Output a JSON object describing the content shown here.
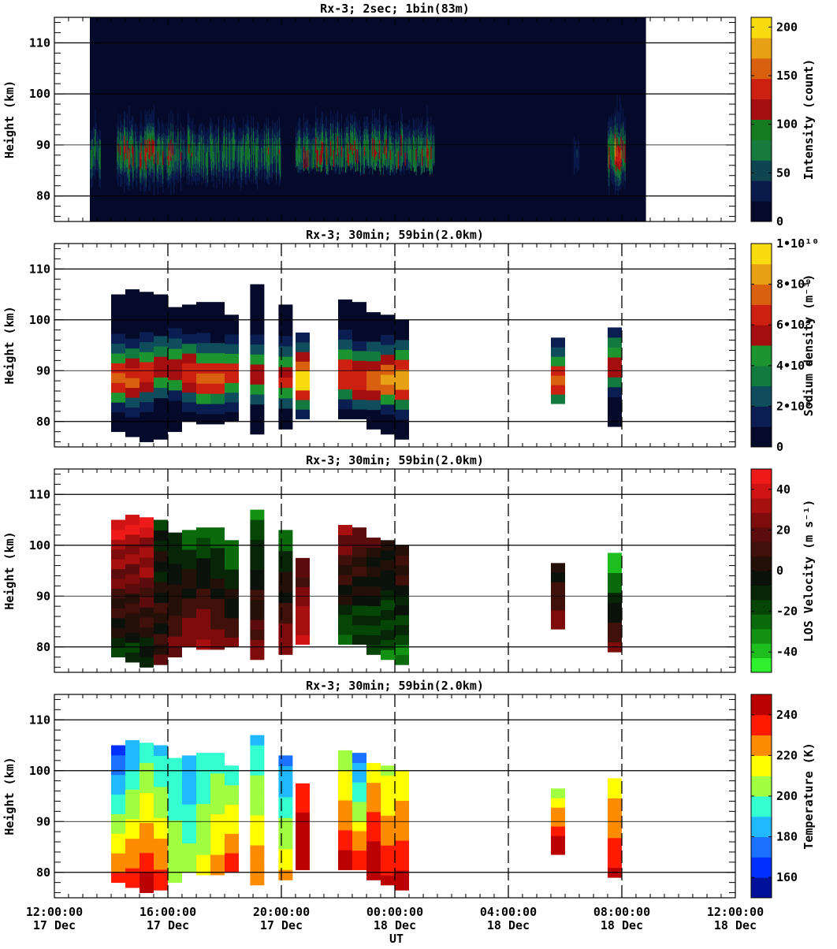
{
  "figure": {
    "xlabel": "UT",
    "x_tick_labels": [
      [
        "12:00:00",
        "17 Dec"
      ],
      [
        "16:00:00",
        "17 Dec"
      ],
      [
        "20:00:00",
        "17 Dec"
      ],
      [
        "00:00:00",
        "18 Dec"
      ],
      [
        "04:00:00",
        "18 Dec"
      ],
      [
        "08:00:00",
        "18 Dec"
      ],
      [
        "12:00:00",
        "18 Dec"
      ]
    ],
    "y_tick_labels": [
      "80",
      "90",
      "100",
      "110"
    ],
    "ylabel": "Height (km)"
  },
  "chart_data": [
    {
      "type": "heatmap",
      "title": "Rx-3;  2sec; 1bin(83m)",
      "xlabel": "UT",
      "ylabel": "Height (km)",
      "x_range_hours_from_12UT_17Dec": [
        0,
        24
      ],
      "ylim": [
        75,
        115
      ],
      "colorbar": {
        "label": "Intensity (count)",
        "range": [
          0,
          210
        ],
        "tick_values": [
          0,
          50,
          100,
          150,
          200
        ],
        "tick_labels": [
          "0",
          "50",
          "100",
          "150",
          "200"
        ]
      },
      "dashed_verticals": false,
      "data_extent_hours": [
        1.25,
        20.85
      ],
      "layer_events": [
        {
          "t": [
            1.25,
            1.6
          ],
          "z": [
            75,
            115
          ],
          "peak_value": 100
        },
        {
          "t": [
            2.2,
            4.2
          ],
          "z": [
            80,
            99
          ],
          "peak_value": 140
        },
        {
          "t": [
            4.2,
            8.0
          ],
          "z": [
            81,
            99
          ],
          "peak_value": 110
        },
        {
          "t": [
            8.5,
            13.4
          ],
          "z": [
            84,
            99
          ],
          "peak_value": 130
        },
        {
          "t": [
            18.3,
            18.5
          ],
          "z": [
            82,
            92
          ],
          "peak_value": 60
        },
        {
          "t": [
            19.5,
            20.1
          ],
          "z": [
            80,
            100
          ],
          "peak_value": 180
        }
      ]
    },
    {
      "type": "heatmap",
      "title": "Rx-3; 30min; 59bin(2.0km)",
      "xlabel": "UT",
      "ylabel": "Height (km)",
      "ylim": [
        75,
        115
      ],
      "colorbar": {
        "label": "Sodium density (m⁻³)",
        "range": [
          0,
          10000000000.0
        ],
        "tick_values": [
          0,
          2000000000.0,
          4000000000.0,
          6000000000.0,
          8000000000.0,
          10000000000.0
        ],
        "tick_labels": [
          "0",
          "2•10⁹",
          "4•10⁹",
          "6•10⁹",
          "8•10⁹",
          "1•10¹⁰"
        ]
      },
      "dashed_verticals": true,
      "columns": [
        {
          "t": [
            2.0,
            2.5
          ],
          "zmin": 78,
          "zmax": 105,
          "peak_z": 88,
          "peak": 7500000000.0
        },
        {
          "t": [
            2.5,
            3.0
          ],
          "zmin": 77,
          "zmax": 106,
          "peak_z": 88,
          "peak": 7200000000.0
        },
        {
          "t": [
            3.0,
            3.5
          ],
          "zmin": 76,
          "zmax": 105.5,
          "peak_z": 89,
          "peak": 6800000000.0
        },
        {
          "t": [
            3.5,
            4.0
          ],
          "zmin": 76.5,
          "zmax": 105,
          "peak_z": 90,
          "peak": 5500000000.0
        },
        {
          "t": [
            4.0,
            4.5
          ],
          "zmin": 78,
          "zmax": 102.5,
          "peak_z": 90,
          "peak": 6000000000.0
        },
        {
          "t": [
            4.5,
            5.0
          ],
          "zmin": 80,
          "zmax": 103,
          "peak_z": 89,
          "peak": 7000000000.0
        },
        {
          "t": [
            5.0,
            5.5
          ],
          "zmin": 79.5,
          "zmax": 103.5,
          "peak_z": 88,
          "peak": 7500000000.0
        },
        {
          "t": [
            5.5,
            6.0
          ],
          "zmin": 79.5,
          "zmax": 103.5,
          "peak_z": 88,
          "peak": 7200000000.0
        },
        {
          "t": [
            6.0,
            6.5
          ],
          "zmin": 80,
          "zmax": 101,
          "peak_z": 89,
          "peak": 6500000000.0
        },
        {
          "t": [
            6.9,
            7.4
          ],
          "zmin": 77.5,
          "zmax": 107,
          "peak_z": 89,
          "peak": 6000000000.0
        },
        {
          "t": [
            7.9,
            8.4
          ],
          "zmin": 78.5,
          "zmax": 103,
          "peak_z": 88,
          "peak": 6500000000.0
        },
        {
          "t": [
            8.5,
            9.0
          ],
          "zmin": 80.5,
          "zmax": 97.5,
          "peak_z": 88,
          "peak": 9500000000.0
        },
        {
          "t": [
            10.0,
            10.5
          ],
          "zmin": 80.5,
          "zmax": 104,
          "peak_z": 89,
          "peak": 7000000000.0
        },
        {
          "t": [
            10.5,
            11.0
          ],
          "zmin": 80.5,
          "zmax": 103.5,
          "peak_z": 88,
          "peak": 7200000000.0
        },
        {
          "t": [
            11.0,
            11.5
          ],
          "zmin": 78.5,
          "zmax": 101.5,
          "peak_z": 88,
          "peak": 7500000000.0
        },
        {
          "t": [
            11.5,
            12.0
          ],
          "zmin": 77.5,
          "zmax": 101,
          "peak_z": 88,
          "peak": 8500000000.0
        },
        {
          "t": [
            12.0,
            12.5
          ],
          "zmin": 76.5,
          "zmax": 100,
          "peak_z": 88,
          "peak": 9000000000.0
        },
        {
          "t": [
            17.5,
            18.0
          ],
          "zmin": 83.5,
          "zmax": 96.5,
          "peak_z": 88,
          "peak": 7200000000.0
        },
        {
          "t": [
            19.5,
            20.0
          ],
          "zmin": 79,
          "zmax": 98.5,
          "peak_z": 91,
          "peak": 5500000000.0
        }
      ]
    },
    {
      "type": "heatmap",
      "title": "Rx-3; 30min; 59bin(2.0km)",
      "xlabel": "UT",
      "ylabel": "Height (km)",
      "ylim": [
        75,
        115
      ],
      "colorbar": {
        "label": "LOS Velocity (m s⁻¹)",
        "range": [
          -50,
          50
        ],
        "tick_values": [
          -40,
          -20,
          0,
          20,
          40
        ],
        "tick_labels": [
          "-40",
          "-20",
          "0",
          "20",
          "40"
        ]
      },
      "dashed_verticals": true,
      "columns": [
        {
          "t": [
            2.0,
            2.5
          ],
          "v_top": 45,
          "v_bottom": -15
        },
        {
          "t": [
            2.5,
            3.0
          ],
          "v_top": 45,
          "v_bottom": -15
        },
        {
          "t": [
            3.0,
            3.5
          ],
          "v_top": 42,
          "v_bottom": -10
        },
        {
          "t": [
            3.5,
            4.0
          ],
          "v_top": -10,
          "v_bottom": 10
        },
        {
          "t": [
            4.0,
            4.5
          ],
          "v_top": -15,
          "v_bottom": 20
        },
        {
          "t": [
            4.5,
            5.0
          ],
          "v_top": -25,
          "v_bottom": 30
        },
        {
          "t": [
            5.0,
            5.5
          ],
          "v_top": -25,
          "v_bottom": 35
        },
        {
          "t": [
            5.5,
            6.0
          ],
          "v_top": -30,
          "v_bottom": 30
        },
        {
          "t": [
            6.0,
            6.5
          ],
          "v_top": -30,
          "v_bottom": 20
        },
        {
          "t": [
            6.9,
            7.4
          ],
          "v_top": -25,
          "v_bottom": 25
        },
        {
          "t": [
            7.9,
            8.4
          ],
          "v_top": -25,
          "v_bottom": 30
        },
        {
          "t": [
            8.5,
            9.0
          ],
          "v_top": 10,
          "v_bottom": 40
        },
        {
          "t": [
            10.0,
            10.5
          ],
          "v_top": 30,
          "v_bottom": -25
        },
        {
          "t": [
            10.5,
            11.0
          ],
          "v_top": 20,
          "v_bottom": -20
        },
        {
          "t": [
            11.0,
            11.5
          ],
          "v_top": 10,
          "v_bottom": -20
        },
        {
          "t": [
            11.5,
            12.0
          ],
          "v_top": 5,
          "v_bottom": -25
        },
        {
          "t": [
            12.0,
            12.5
          ],
          "v_top": 15,
          "v_bottom": -30
        },
        {
          "t": [
            17.5,
            18.0
          ],
          "v_top": -5,
          "v_bottom": 30
        },
        {
          "t": [
            19.5,
            20.0
          ],
          "v_top": -45,
          "v_bottom": 25
        }
      ]
    },
    {
      "type": "heatmap",
      "title": "Rx-3; 30min; 59bin(2.0km)",
      "xlabel": "UT",
      "ylabel": "Height (km)",
      "ylim": [
        75,
        115
      ],
      "colorbar": {
        "label": "Temperature (K)",
        "range": [
          150,
          250
        ],
        "tick_values": [
          160,
          180,
          200,
          220,
          240
        ],
        "tick_labels": [
          "160",
          "180",
          "200",
          "220",
          "240"
        ]
      },
      "dashed_verticals": true,
      "columns": [
        {
          "t": [
            2.0,
            2.5
          ],
          "T_top": 172,
          "T_bottom": 240
        },
        {
          "t": [
            2.5,
            3.0
          ],
          "T_top": 180,
          "T_bottom": 238
        },
        {
          "t": [
            3.0,
            3.5
          ],
          "T_top": 185,
          "T_bottom": 240
        },
        {
          "t": [
            3.5,
            4.0
          ],
          "T_top": 188,
          "T_bottom": 240
        },
        {
          "t": [
            4.0,
            4.5
          ],
          "T_top": 190,
          "T_bottom": 205
        },
        {
          "t": [
            4.5,
            5.0
          ],
          "T_top": 185,
          "T_bottom": 212
        },
        {
          "t": [
            5.0,
            5.5
          ],
          "T_top": 190,
          "T_bottom": 215
        },
        {
          "t": [
            5.5,
            6.0
          ],
          "T_top": 190,
          "T_bottom": 220
        },
        {
          "t": [
            6.0,
            6.5
          ],
          "T_top": 195,
          "T_bottom": 240
        },
        {
          "t": [
            6.9,
            7.4
          ],
          "T_top": 185,
          "T_bottom": 228
        },
        {
          "t": [
            7.9,
            8.4
          ],
          "T_top": 180,
          "T_bottom": 228
        },
        {
          "t": [
            8.5,
            9.0
          ],
          "T_top": 235,
          "T_bottom": 248
        },
        {
          "t": [
            10.0,
            10.5
          ],
          "T_top": 195,
          "T_bottom": 240
        },
        {
          "t": [
            10.5,
            11.0
          ],
          "T_top": 175,
          "T_bottom": 245
        },
        {
          "t": [
            11.0,
            11.5
          ],
          "T_top": 212,
          "T_bottom": 248
        },
        {
          "t": [
            11.5,
            12.0
          ],
          "T_top": 212,
          "T_bottom": 248
        },
        {
          "t": [
            12.0,
            12.5
          ],
          "T_top": 210,
          "T_bottom": 245
        },
        {
          "t": [
            17.5,
            18.0
          ],
          "T_top": 200,
          "T_bottom": 245
        },
        {
          "t": [
            19.5,
            20.0
          ],
          "T_top": 218,
          "T_bottom": 245
        }
      ]
    }
  ],
  "colors": {
    "intensity": [
      "#050a2a",
      "#0a1a4a",
      "#0f4550",
      "#187a3d",
      "#157a20",
      "#a50e0e",
      "#cc2010",
      "#d9600f",
      "#e8a014",
      "#f8dc10"
    ],
    "density": [
      "#050a2a",
      "#0b1e52",
      "#0f4d5c",
      "#137a3f",
      "#1c9430",
      "#a50e0e",
      "#cc2010",
      "#d9600f",
      "#e8a014",
      "#f8dc10"
    ],
    "velocity": [
      "#2ef02e",
      "#1fbe1f",
      "#139113",
      "#0b6a0b",
      "#054505",
      "#072507",
      "#0b120b",
      "#241008",
      "#40100b",
      "#5c0c0c",
      "#7f0c0c",
      "#a80f0f",
      "#d01414",
      "#ee1a1a"
    ],
    "temperature": [
      "#001099",
      "#0030ff",
      "#1a70ff",
      "#20b8ff",
      "#33ffd0",
      "#a0ff40",
      "#ffff00",
      "#ff8c00",
      "#ff1a00",
      "#bb0000"
    ]
  }
}
